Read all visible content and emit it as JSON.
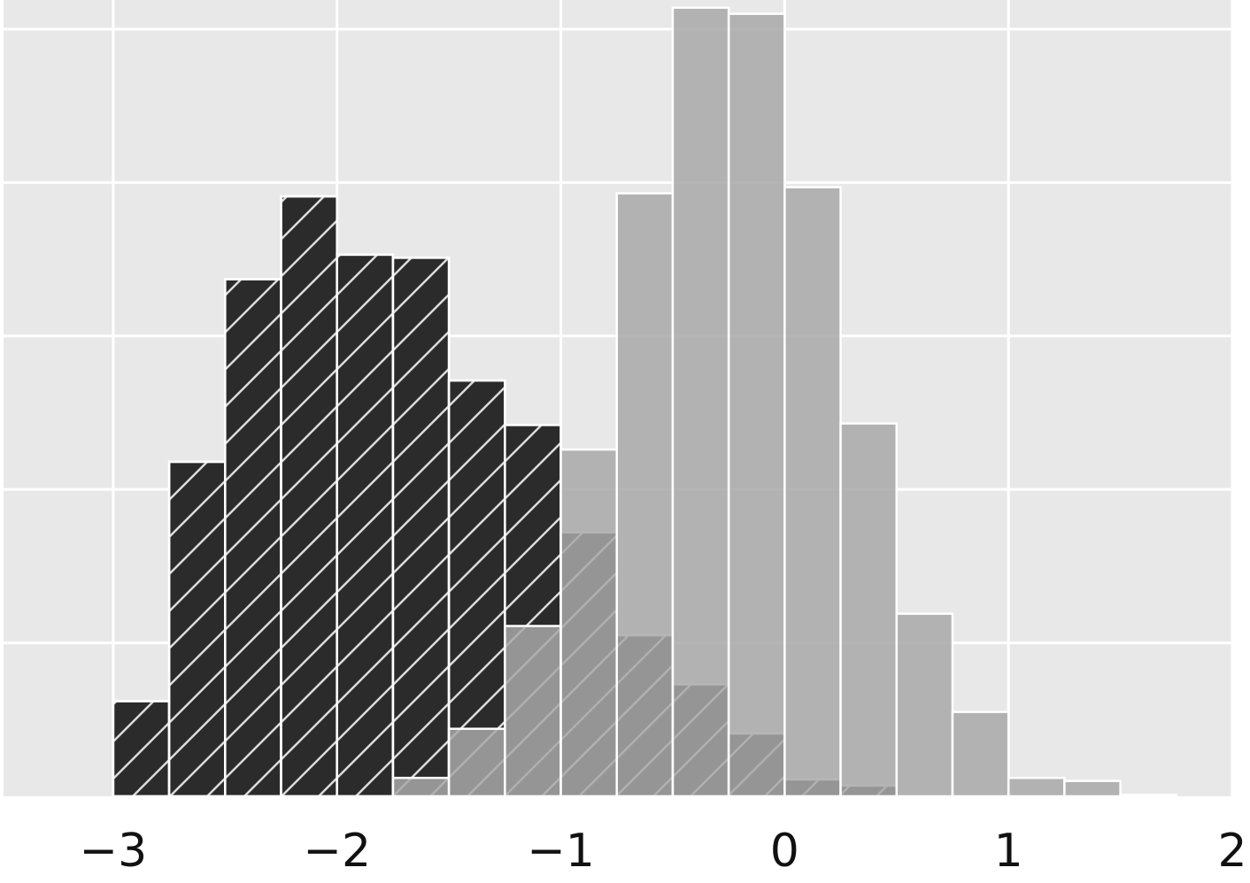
{
  "chart_data": {
    "type": "histogram",
    "series": [
      {
        "color": "#2b2b2b",
        "hatch": "/",
        "bins": [
          -3,
          -2.75,
          -2.5,
          -2.25,
          -2,
          -1.75,
          -1.5,
          -1.25,
          -1,
          -0.75,
          -0.5,
          -0.25,
          0,
          0.25,
          0.5
        ],
        "values": [
          0.62,
          2.18,
          3.37,
          3.91,
          3.53,
          3.51,
          2.71,
          2.42,
          1.72,
          1.05,
          0.73,
          0.41,
          0.11,
          0.07
        ]
      },
      {
        "color": "#a8a8a8",
        "opacity": 0.85,
        "bins": [
          -1.75,
          -1.5,
          -1.25,
          -1,
          -0.75,
          -0.5,
          -0.25,
          0,
          0.25,
          0.5,
          0.75,
          1,
          1.25,
          1.5,
          1.75
        ],
        "values": [
          0.12,
          0.44,
          1.11,
          2.26,
          3.93,
          5.14,
          5.1,
          3.97,
          2.43,
          1.19,
          0.55,
          0.12,
          0.1,
          0.01
        ]
      }
    ],
    "xlim": [
      -3.49,
      2
    ],
    "ylim": [
      0,
      5.19
    ],
    "xticks": [
      {
        "value": -3,
        "label": "−3"
      },
      {
        "value": -2,
        "label": "−2"
      },
      {
        "value": -1,
        "label": "−1"
      },
      0,
      1,
      2
    ],
    "yticks": [
      1,
      2,
      3,
      4,
      5
    ],
    "grid": true
  }
}
